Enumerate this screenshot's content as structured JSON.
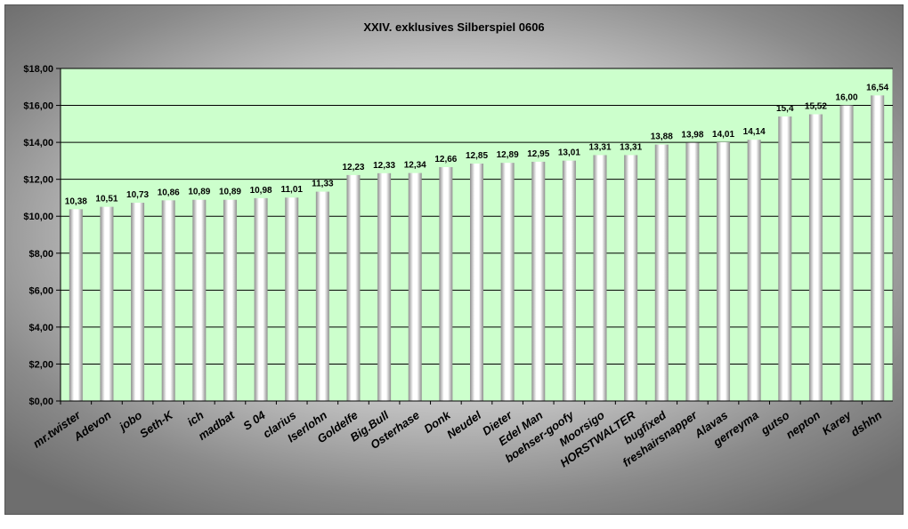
{
  "chart_data": {
    "type": "bar",
    "title": "XXIV. exklusives Silberspiel 0606",
    "xlabel": "",
    "ylabel": "",
    "ylim": [
      0,
      18
    ],
    "yticks": [
      "$0,00",
      "$2,00",
      "$4,00",
      "$6,00",
      "$8,00",
      "$10,00",
      "$12,00",
      "$14,00",
      "$16,00",
      "$18,00"
    ],
    "grid": true,
    "legend": "none",
    "categories": [
      "mr.twister",
      "Adevon",
      "jobo",
      "Seth-K",
      "ich",
      "madbat",
      "S 04",
      "clarius",
      "Iserlohn",
      "Goldelfe",
      "Big.Bull",
      "Osterhase",
      "Donk",
      "Neudel",
      "Dieter",
      "Edel Man",
      "boehser-goofy",
      "Moorsigo",
      "HORSTWALTER",
      "bugfixed",
      "freshairsnapper",
      "Alavas",
      "gerreyma",
      "gutso",
      "nepton",
      "Karey",
      "dshhn"
    ],
    "values": [
      10.38,
      10.51,
      10.73,
      10.86,
      10.89,
      10.89,
      10.98,
      11.01,
      11.33,
      12.23,
      12.33,
      12.34,
      12.66,
      12.85,
      12.89,
      12.95,
      13.01,
      13.31,
      13.31,
      13.88,
      13.98,
      14.01,
      14.14,
      15.4,
      15.52,
      16.0,
      16.54
    ],
    "data_labels": [
      "10,38",
      "10,51",
      "10,73",
      "10,86",
      "10,89",
      "10,89",
      "10,98",
      "11,01",
      "11,33",
      "12,23",
      "12,33",
      "12,34",
      "12,66",
      "12,85",
      "12,89",
      "12,95",
      "13,01",
      "13,31",
      "13,31",
      "13,88",
      "13,98",
      "14,01",
      "14,14",
      "15,4",
      "15,52",
      "16,00",
      "16,54"
    ],
    "colors": {
      "plot_background": "#ccffcc",
      "bar_light": "#ffffff",
      "bar_dark": "#9a9a9a",
      "gridline": "#000000"
    }
  }
}
